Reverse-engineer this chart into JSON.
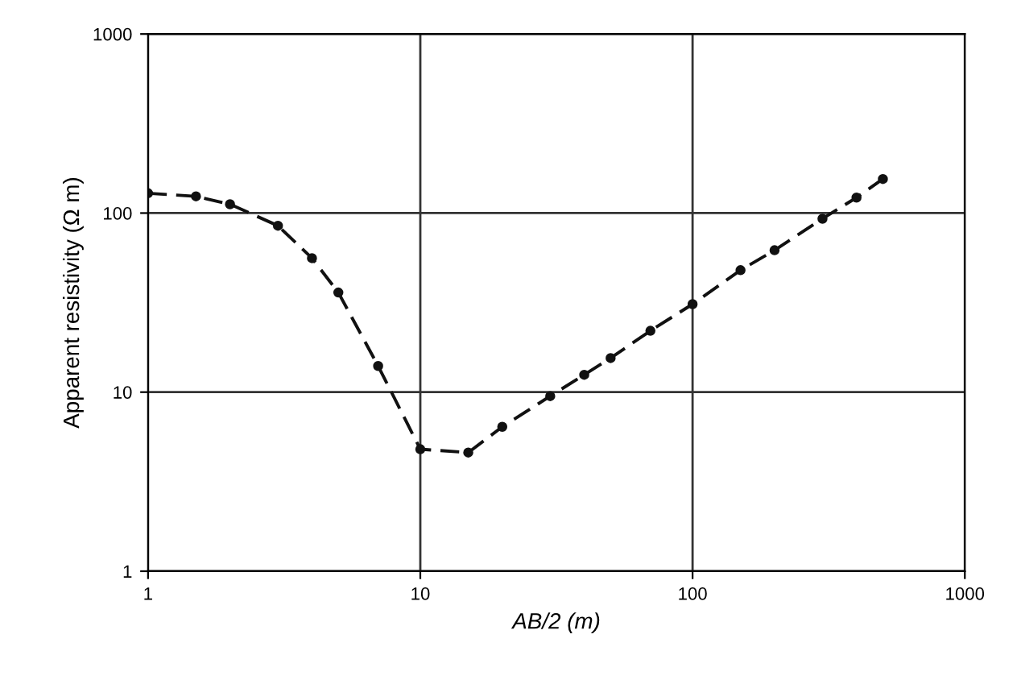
{
  "chart_data": {
    "type": "line",
    "xlabel": "AB/2 (m)",
    "ylabel": "Apparent resistivity (Ω m)",
    "log": "xy",
    "x": [
      1,
      1.5,
      2,
      3,
      4,
      5,
      7,
      10,
      15,
      20,
      30,
      40,
      50,
      70,
      100,
      150,
      200,
      300,
      400,
      500
    ],
    "series": [
      {
        "color": "#111111",
        "values": [
          129,
          124,
          112,
          85,
          56,
          36,
          14,
          4.8,
          4.6,
          6.4,
          9.5,
          12.5,
          15.5,
          22,
          31,
          48,
          62,
          93,
          122,
          155
        ]
      }
    ],
    "xlim": [
      1,
      1000
    ],
    "ylim": [
      1,
      1000
    ],
    "xticks": [
      1,
      10,
      100,
      1000
    ],
    "yticks": [
      1,
      10,
      100,
      1000
    ],
    "grid": true,
    "marker": "circle",
    "line_style": "dashed"
  }
}
